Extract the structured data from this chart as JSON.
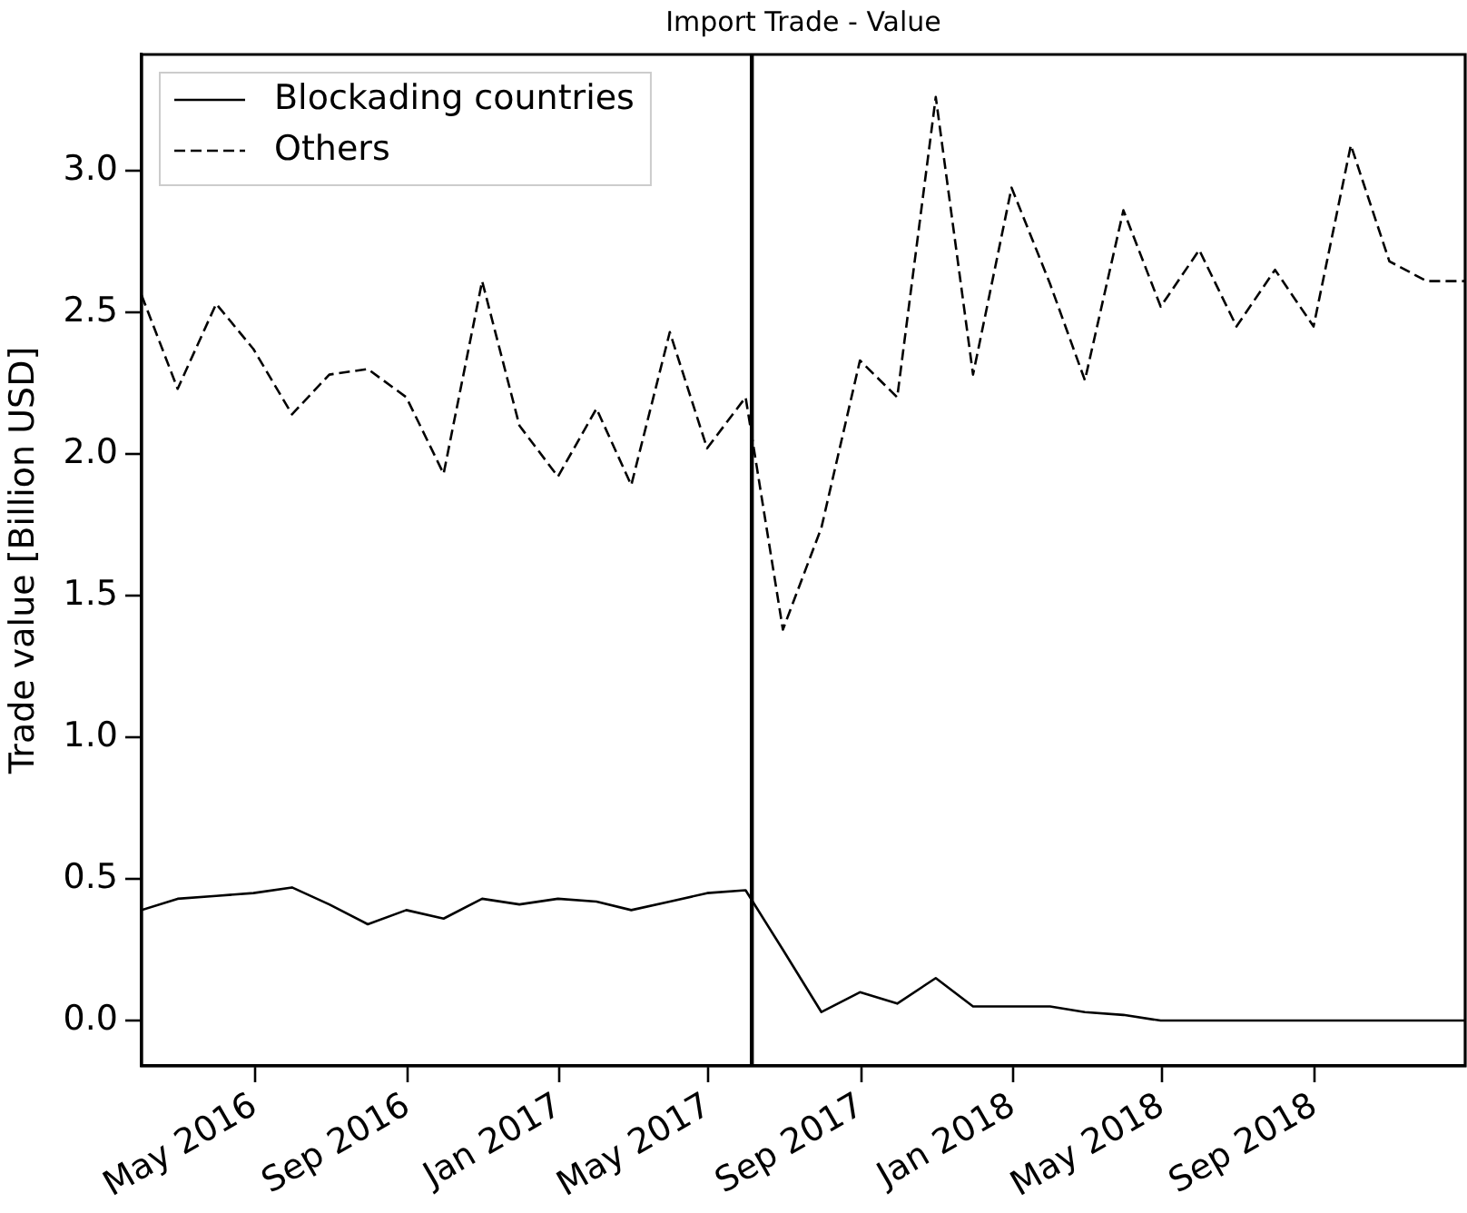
{
  "chart_data": {
    "type": "line",
    "title": "Import Trade - Value",
    "ylabel": "Trade value [Billion USD]",
    "x": [
      "2016-01-31",
      "2016-02-29",
      "2016-03-31",
      "2016-04-30",
      "2016-05-31",
      "2016-06-30",
      "2016-07-31",
      "2016-08-31",
      "2016-09-30",
      "2016-10-31",
      "2016-11-30",
      "2016-12-31",
      "2017-01-31",
      "2017-02-28",
      "2017-03-31",
      "2017-04-30",
      "2017-05-31",
      "2017-06-30",
      "2017-07-31",
      "2017-08-31",
      "2017-09-30",
      "2017-10-31",
      "2017-11-30",
      "2017-12-31",
      "2018-01-31",
      "2018-02-28",
      "2018-03-31",
      "2018-04-30",
      "2018-05-31",
      "2018-06-30",
      "2018-07-31",
      "2018-08-31",
      "2018-09-30",
      "2018-10-31",
      "2018-11-30",
      "2018-12-31"
    ],
    "series": [
      {
        "name": "Blockading countries",
        "color": "#000000",
        "line_style": "solid",
        "values": [
          0.39,
          0.43,
          0.44,
          0.45,
          0.47,
          0.41,
          0.34,
          0.39,
          0.36,
          0.43,
          0.41,
          0.43,
          0.42,
          0.39,
          0.42,
          0.45,
          0.46,
          0.25,
          0.03,
          0.1,
          0.06,
          0.15,
          0.05,
          0.05,
          0.05,
          0.03,
          0.02,
          0.0,
          0.0,
          0.0,
          0.0,
          0.0,
          0.0,
          0.0,
          0.0,
          0.0
        ]
      },
      {
        "name": "Others",
        "color": "#000000",
        "line_style": "dashed",
        "values": [
          2.56,
          2.23,
          2.53,
          2.37,
          2.14,
          2.28,
          2.3,
          2.2,
          1.93,
          2.61,
          2.1,
          1.92,
          2.16,
          1.89,
          2.43,
          2.02,
          2.2,
          1.38,
          1.74,
          2.33,
          2.2,
          3.26,
          2.28,
          2.94,
          2.6,
          2.26,
          2.86,
          2.52,
          2.72,
          2.45,
          2.65,
          2.45,
          3.09,
          2.68,
          2.61,
          2.61
        ]
      }
    ],
    "xlim": [
      "2016-01-31",
      "2018-12-31"
    ],
    "xticks": [
      {
        "value": "2016-05",
        "label": "May 2016"
      },
      {
        "value": "2016-09",
        "label": "Sep 2016"
      },
      {
        "value": "2017-01",
        "label": "Jan 2017"
      },
      {
        "value": "2017-05",
        "label": "May 2017"
      },
      {
        "value": "2017-09",
        "label": "Sep 2017"
      },
      {
        "value": "2018-01",
        "label": "Jan 2018"
      },
      {
        "value": "2018-05",
        "label": "May 2018"
      },
      {
        "value": "2018-09",
        "label": "Sep 2018"
      }
    ],
    "ylim": [
      -0.16,
      3.41
    ],
    "yticks": [
      {
        "value": 0,
        "label": "0.0"
      },
      0.5,
      {
        "value": 1,
        "label": "1.0"
      },
      1.5,
      {
        "value": 2,
        "label": "2.0"
      },
      2.5,
      {
        "value": 3,
        "label": "3.0"
      }
    ],
    "ref_lines": [
      {
        "axis": "x",
        "value": "2017-06-05",
        "color": "#000000",
        "line_style": "solid"
      }
    ],
    "legend": "top left",
    "marker": "none"
  }
}
